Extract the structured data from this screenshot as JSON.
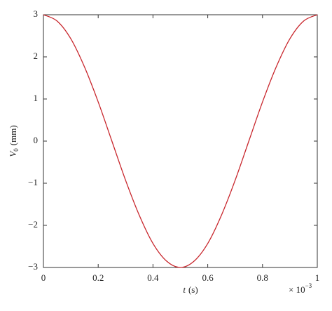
{
  "chart_data": {
    "type": "line",
    "xlabel": {
      "symbol": "t",
      "unit": "(s)"
    },
    "ylabel": {
      "symbol": "V",
      "subscript": "0",
      "unit": "(mm)"
    },
    "x_scale_label": {
      "base": "× 10",
      "exponent": "−3"
    },
    "x": [
      0,
      0.05,
      0.1,
      0.15,
      0.2,
      0.25,
      0.3,
      0.35,
      0.4,
      0.45,
      0.5,
      0.55,
      0.6,
      0.65,
      0.7,
      0.75,
      0.8,
      0.85,
      0.9,
      0.95,
      1
    ],
    "series": [
      {
        "color": "#c8262c",
        "values": [
          3,
          2.85,
          2.43,
          1.76,
          0.93,
          0,
          -0.93,
          -1.76,
          -2.43,
          -2.85,
          -3,
          -2.85,
          -2.43,
          -1.76,
          -0.93,
          0,
          0.93,
          1.76,
          2.43,
          2.85,
          3
        ]
      }
    ],
    "xlim": [
      0,
      1
    ],
    "xticks": [
      0,
      0.2,
      0.4,
      0.6,
      0.8,
      1
    ],
    "ylim": [
      -3,
      3
    ],
    "yticks": [
      {
        "value": -3,
        "label": "−3"
      },
      {
        "value": -2,
        "label": "−2"
      },
      {
        "value": -1,
        "label": "−1"
      },
      0,
      1,
      2,
      3
    ]
  }
}
